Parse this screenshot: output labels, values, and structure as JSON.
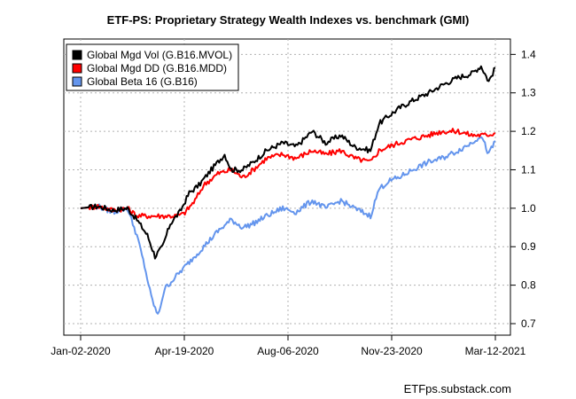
{
  "chart_data": {
    "type": "line",
    "title": "ETF-PS: Proprietary Strategy Wealth Indexes vs. benchmark (GMI)",
    "xlabel": "",
    "ylabel": "",
    "x_ticks": [
      "Jan-02-2020",
      "Apr-19-2020",
      "Aug-06-2020",
      "Nov-23-2020",
      "Mar-12-2021"
    ],
    "y_ticks": [
      "0.7",
      "0.8",
      "0.9",
      "1.0",
      "1.1",
      "1.2",
      "1.3",
      "1.4"
    ],
    "ylim": [
      0.67,
      1.44
    ],
    "grid": true,
    "legend_position": "top-left",
    "credit": "ETFps.substack.com",
    "series": [
      {
        "name": "Global Mgd Vol (G.B16.MVOL)",
        "color": "#000000",
        "x": [
          "2020-01-02",
          "2020-01-20",
          "2020-02-05",
          "2020-02-20",
          "2020-03-01",
          "2020-03-12",
          "2020-03-20",
          "2020-03-28",
          "2020-04-05",
          "2020-04-15",
          "2020-04-25",
          "2020-05-05",
          "2020-05-18",
          "2020-06-01",
          "2020-06-08",
          "2020-06-20",
          "2020-07-01",
          "2020-07-15",
          "2020-08-01",
          "2020-08-15",
          "2020-09-01",
          "2020-09-15",
          "2020-10-01",
          "2020-10-15",
          "2020-11-01",
          "2020-11-10",
          "2020-11-20",
          "2020-12-01",
          "2020-12-15",
          "2021-01-01",
          "2021-01-15",
          "2021-02-01",
          "2021-02-15",
          "2021-02-25",
          "2021-03-05",
          "2021-03-12"
        ],
        "values": [
          1.0,
          1.005,
          0.995,
          1.0,
          0.97,
          0.93,
          0.875,
          0.9,
          0.96,
          0.99,
          1.04,
          1.06,
          1.1,
          1.14,
          1.1,
          1.1,
          1.12,
          1.15,
          1.17,
          1.16,
          1.2,
          1.17,
          1.19,
          1.16,
          1.15,
          1.22,
          1.24,
          1.26,
          1.28,
          1.3,
          1.32,
          1.34,
          1.35,
          1.37,
          1.33,
          1.365
        ]
      },
      {
        "name": "Global Mgd DD (G.B16.MDD)",
        "color": "#ff0000",
        "x": [
          "2020-01-02",
          "2020-01-20",
          "2020-02-05",
          "2020-02-20",
          "2020-03-01",
          "2020-03-12",
          "2020-03-25",
          "2020-04-10",
          "2020-04-19",
          "2020-05-01",
          "2020-05-10",
          "2020-05-25",
          "2020-06-08",
          "2020-06-20",
          "2020-07-01",
          "2020-07-15",
          "2020-08-01",
          "2020-08-15",
          "2020-09-01",
          "2020-09-15",
          "2020-10-01",
          "2020-10-15",
          "2020-11-01",
          "2020-11-10",
          "2020-11-20",
          "2020-12-01",
          "2020-12-15",
          "2021-01-01",
          "2021-01-15",
          "2021-02-01",
          "2021-02-15",
          "2021-03-01",
          "2021-03-12"
        ],
        "values": [
          1.0,
          1.005,
          0.995,
          1.0,
          0.98,
          0.98,
          0.98,
          0.98,
          0.985,
          1.02,
          1.06,
          1.09,
          1.1,
          1.08,
          1.1,
          1.13,
          1.14,
          1.13,
          1.15,
          1.14,
          1.15,
          1.13,
          1.12,
          1.15,
          1.16,
          1.17,
          1.18,
          1.19,
          1.2,
          1.2,
          1.19,
          1.19,
          1.195
        ]
      },
      {
        "name": "Global Beta 16 (G.B16)",
        "color": "#6495ed",
        "x": [
          "2020-01-02",
          "2020-01-20",
          "2020-02-05",
          "2020-02-20",
          "2020-03-01",
          "2020-03-09",
          "2020-03-16",
          "2020-03-23",
          "2020-03-30",
          "2020-04-10",
          "2020-04-25",
          "2020-05-10",
          "2020-05-25",
          "2020-06-08",
          "2020-06-20",
          "2020-07-01",
          "2020-07-15",
          "2020-08-01",
          "2020-08-15",
          "2020-09-01",
          "2020-09-15",
          "2020-10-01",
          "2020-10-15",
          "2020-11-01",
          "2020-11-10",
          "2020-11-20",
          "2020-12-01",
          "2020-12-15",
          "2021-01-01",
          "2021-01-15",
          "2021-02-01",
          "2021-02-15",
          "2021-02-25",
          "2021-03-05",
          "2021-03-12"
        ],
        "values": [
          1.0,
          1.005,
          0.99,
          1.0,
          0.93,
          0.85,
          0.77,
          0.72,
          0.79,
          0.82,
          0.86,
          0.9,
          0.94,
          0.97,
          0.95,
          0.96,
          0.98,
          1.0,
          0.99,
          1.02,
          1.0,
          1.02,
          1.0,
          0.98,
          1.05,
          1.07,
          1.08,
          1.1,
          1.12,
          1.13,
          1.15,
          1.17,
          1.19,
          1.14,
          1.175
        ]
      }
    ]
  }
}
